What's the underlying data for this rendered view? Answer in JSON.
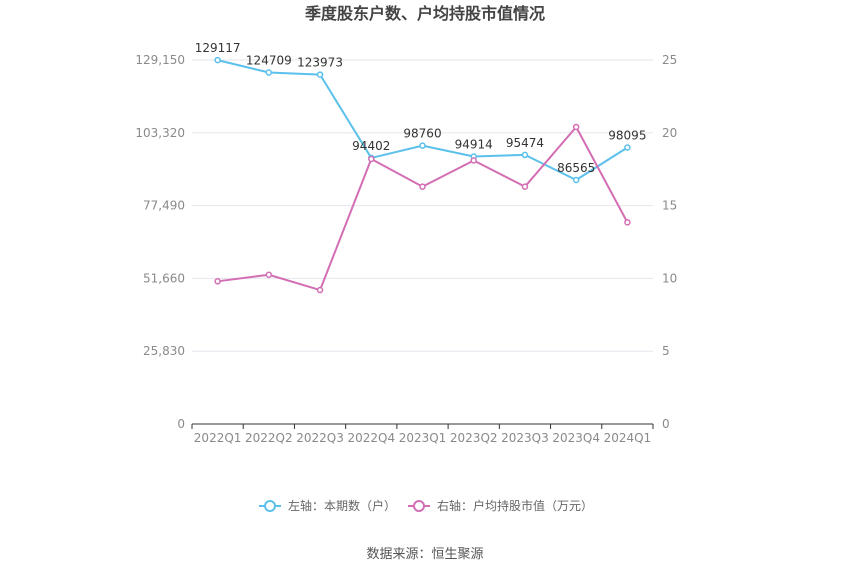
{
  "title": "季度股东户数、户均持股市值情况",
  "source_text": "数据来源：恒生聚源",
  "colors": {
    "left_series": "#5bc0eb",
    "right_series": "#d36eb4",
    "grid": "#e6e6ee",
    "axis": "#333333"
  },
  "chart_data": {
    "type": "line",
    "title": "季度股东户数、户均持股市值情况",
    "categories": [
      "2022Q1",
      "2022Q2",
      "2022Q3",
      "2022Q4",
      "2023Q1",
      "2023Q2",
      "2023Q3",
      "2023Q4",
      "2024Q1"
    ],
    "left_axis": {
      "ylim": [
        0,
        129150
      ],
      "ticks": [
        0,
        25830,
        51660,
        77490,
        103320,
        129150
      ],
      "tick_labels": [
        "0",
        "25,830",
        "51,660",
        "77,490",
        "103,320",
        "129,150"
      ]
    },
    "right_axis": {
      "ylim": [
        0,
        25
      ],
      "ticks": [
        0,
        5,
        10,
        15,
        20,
        25
      ],
      "tick_labels": [
        "0",
        "5",
        "10",
        "15",
        "20",
        "25"
      ]
    },
    "series": [
      {
        "name": "左轴：本期数（户）",
        "axis": "left",
        "values": [
          129117,
          124709,
          123973,
          94402,
          98760,
          94914,
          95474,
          86565,
          98095
        ],
        "labels": [
          "129117",
          "124709",
          "123973",
          "94402",
          "98760",
          "94914",
          "95474",
          "86565",
          "98095"
        ]
      },
      {
        "name": "右轴：户均持股市值（万元）",
        "axis": "right",
        "values": [
          9.8,
          10.25,
          9.2,
          18.2,
          16.3,
          18.1,
          16.3,
          20.4,
          13.85
        ]
      }
    ],
    "grid": true,
    "legend_position": "bottom-center"
  }
}
